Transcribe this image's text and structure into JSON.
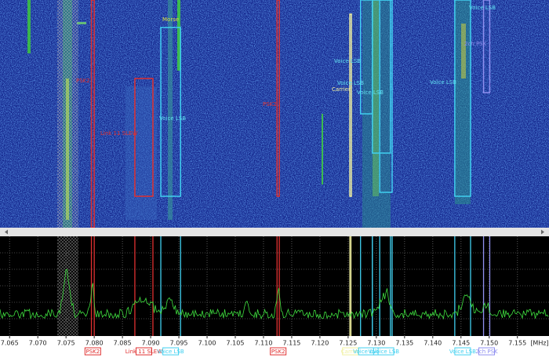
{
  "axis": {
    "unit": "[MHz]",
    "range": [
      7.0633,
      7.1606
    ],
    "ticks": [
      7.065,
      {
        "value": 7.07,
        "label": "7.070"
      },
      7.075,
      {
        "value": 7.08,
        "label": "7.080"
      },
      7.085,
      {
        "value": 7.09,
        "label": "7.090"
      },
      7.095,
      {
        "value": 7.1,
        "label": "7.100"
      },
      7.105,
      {
        "value": 7.11,
        "label": "7.110"
      },
      7.115,
      {
        "value": 7.12,
        "label": "7.120"
      },
      7.125,
      {
        "value": 7.13,
        "label": "7.130"
      },
      7.135,
      {
        "value": 7.14,
        "label": "7.140"
      },
      7.145,
      {
        "value": 7.15,
        "label": "7.150"
      },
      7.155
    ]
  },
  "markers": [
    {
      "label": "PSK2",
      "lo": 7.0795,
      "hi": 7.08,
      "color": "#e03030"
    },
    {
      "label": "Link 11 SLEW",
      "lo": 7.0872,
      "hi": 7.0904,
      "color": "#e03030"
    },
    {
      "label": "Voice LSB",
      "lo": 7.0918,
      "hi": 7.0953,
      "color": "#40d0f0"
    },
    {
      "label": "PSK2",
      "lo": 7.1124,
      "hi": 7.1128,
      "color": "#e03030"
    },
    {
      "label": "Carrier",
      "lo": 7.1253,
      "hi": 7.1255,
      "color": "#f0f0a0"
    },
    {
      "label": "Voice LSB",
      "lo": 7.1272,
      "hi": 7.1293,
      "color": "#40d0f0"
    },
    {
      "label": "Voice LSB",
      "lo": 7.1293,
      "hi": 7.1325,
      "color": "#40d0f0"
    },
    {
      "label": "Voice LSB",
      "lo": 7.1306,
      "hi": 7.1328,
      "color": "#40d0f0"
    },
    {
      "label": "Voice LSB",
      "lo": 7.1439,
      "hi": 7.1467,
      "color": "#40d0f0"
    },
    {
      "label": "2ch PSK",
      "lo": 7.149,
      "hi": 7.1501,
      "color": "#9090f0"
    }
  ],
  "waterfall_labels": [
    "Morse",
    "Voice LSB",
    "Link 11 SLEW",
    "PSK2",
    "PSK2",
    "Carrier",
    "Voice LSB",
    "Voice LSB",
    "Voice LSB",
    "Voice LSB",
    "Voice LSB",
    "2ch PSK"
  ]
}
